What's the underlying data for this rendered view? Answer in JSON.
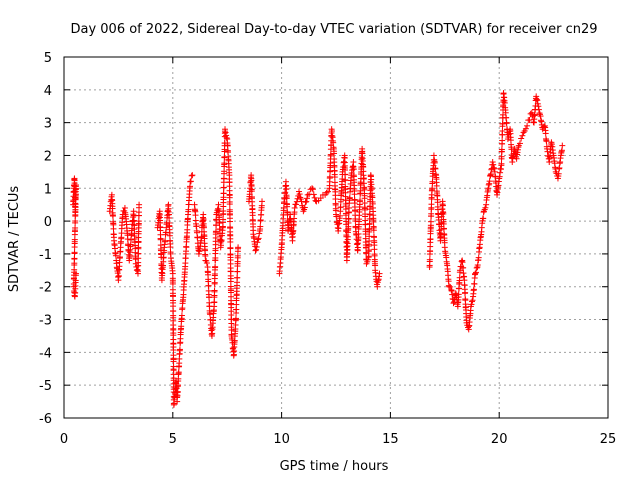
{
  "chart_data": {
    "type": "scatter",
    "title": "Day 006 of 2022, Sidereal Day-to-day VTEC variation (SDTVAR) for receiver cn29",
    "xlabel": "GPS time / hours",
    "ylabel": "SDTVAR / TECUs",
    "xlim": [
      0,
      25
    ],
    "ylim": [
      -6,
      5
    ],
    "xticks": [
      0,
      5,
      10,
      15,
      20,
      25
    ],
    "yticks": [
      -6,
      -5,
      -4,
      -3,
      -2,
      -1,
      0,
      1,
      2,
      3,
      4,
      5
    ],
    "grid": true,
    "marker": "plus",
    "color": "#ff0000",
    "series": [
      {
        "name": "SDTVAR",
        "segments": [
          [
            [
              0.42,
              0.5
            ],
            [
              0.45,
              0.9
            ],
            [
              0.48,
              1.3
            ],
            [
              0.52,
              0.3
            ],
            [
              0.55,
              1.1
            ],
            [
              0.45,
              -2.0
            ],
            [
              0.5,
              -2.3
            ],
            [
              0.55,
              -1.6
            ]
          ],
          [
            [
              2.1,
              0.3
            ],
            [
              2.2,
              0.8
            ],
            [
              2.3,
              -0.6
            ],
            [
              2.4,
              -1.2
            ],
            [
              2.5,
              -1.8
            ],
            [
              2.6,
              -0.8
            ],
            [
              2.7,
              0.2
            ],
            [
              2.8,
              0.4
            ],
            [
              2.9,
              -0.3
            ],
            [
              3.0,
              -1.2
            ],
            [
              3.1,
              -0.4
            ],
            [
              3.2,
              0.3
            ],
            [
              3.3,
              -1.3
            ],
            [
              3.4,
              -1.6
            ],
            [
              3.45,
              0.5
            ]
          ],
          [
            [
              4.3,
              -0.2
            ],
            [
              4.4,
              0.3
            ],
            [
              4.5,
              -1.8
            ],
            [
              4.6,
              -0.9
            ],
            [
              4.7,
              -0.2
            ],
            [
              4.8,
              0.5
            ],
            [
              4.9,
              -1.0
            ],
            [
              5.0,
              -1.6
            ],
            [
              5.05,
              -5.6
            ],
            [
              5.15,
              -4.9
            ],
            [
              5.2,
              -5.5
            ],
            [
              5.3,
              -4.2
            ],
            [
              5.4,
              -3.0
            ],
            [
              5.5,
              -2.1
            ],
            [
              5.6,
              -1.0
            ],
            [
              5.7,
              0.2
            ],
            [
              5.8,
              1.2
            ],
            [
              5.9,
              1.4
            ]
          ],
          [
            [
              6.0,
              0.5
            ],
            [
              6.1,
              -0.3
            ],
            [
              6.2,
              -1.0
            ],
            [
              6.3,
              -0.6
            ],
            [
              6.4,
              0.2
            ],
            [
              6.5,
              -1.2
            ],
            [
              6.6,
              -1.4
            ],
            [
              6.7,
              -2.8
            ],
            [
              6.8,
              -3.5
            ],
            [
              6.9,
              -2.6
            ],
            [
              7.0,
              0.2
            ],
            [
              7.1,
              0.5
            ],
            [
              7.2,
              -0.8
            ],
            [
              7.3,
              -0.2
            ],
            [
              7.4,
              2.8
            ],
            [
              7.5,
              2.5
            ],
            [
              7.6,
              1.4
            ],
            [
              7.7,
              -3.5
            ],
            [
              7.8,
              -4.1
            ],
            [
              7.9,
              -3.0
            ],
            [
              8.0,
              -0.8
            ]
          ],
          [
            [
              8.5,
              0.6
            ],
            [
              8.6,
              1.4
            ],
            [
              8.7,
              -0.4
            ],
            [
              8.8,
              -0.9
            ],
            [
              9.0,
              -0.3
            ],
            [
              9.1,
              0.6
            ]
          ],
          [
            [
              9.9,
              -1.6
            ],
            [
              10.0,
              -0.8
            ],
            [
              10.1,
              0.4
            ],
            [
              10.2,
              1.2
            ],
            [
              10.3,
              -0.3
            ],
            [
              10.4,
              0.2
            ],
            [
              10.5,
              -0.6
            ],
            [
              10.6,
              0.4
            ],
            [
              10.8,
              0.9
            ],
            [
              11.0,
              0.3
            ],
            [
              11.2,
              0.8
            ],
            [
              11.4,
              1.0
            ],
            [
              11.6,
              0.6
            ],
            [
              11.8,
              0.7
            ],
            [
              12.0,
              0.8
            ],
            [
              12.2,
              1.0
            ],
            [
              12.3,
              2.8
            ],
            [
              12.4,
              2.2
            ],
            [
              12.5,
              0.2
            ],
            [
              12.6,
              -0.3
            ],
            [
              12.7,
              0.3
            ],
            [
              12.8,
              1.5
            ],
            [
              12.9,
              2.0
            ],
            [
              13.0,
              -1.2
            ],
            [
              13.1,
              0.4
            ],
            [
              13.2,
              1.4
            ],
            [
              13.3,
              1.8
            ],
            [
              13.4,
              -0.2
            ],
            [
              13.5,
              -0.9
            ],
            [
              13.6,
              0.6
            ],
            [
              13.7,
              2.2
            ],
            [
              13.8,
              1.0
            ],
            [
              13.9,
              -1.3
            ],
            [
              14.0,
              -1.1
            ],
            [
              14.1,
              1.4
            ],
            [
              14.2,
              0.4
            ],
            [
              14.3,
              -1.5
            ],
            [
              14.4,
              -2.0
            ],
            [
              14.5,
              -1.6
            ]
          ],
          [
            [
              16.8,
              -1.4
            ],
            [
              16.9,
              0.8
            ],
            [
              17.0,
              2.0
            ],
            [
              17.1,
              1.4
            ],
            [
              17.2,
              0.2
            ],
            [
              17.3,
              -0.6
            ],
            [
              17.4,
              0.6
            ],
            [
              17.5,
              -0.8
            ],
            [
              17.6,
              -1.3
            ],
            [
              17.7,
              -2.0
            ],
            [
              17.8,
              -2.1
            ],
            [
              17.9,
              -2.5
            ],
            [
              18.0,
              -2.2
            ],
            [
              18.1,
              -2.6
            ],
            [
              18.2,
              -1.5
            ],
            [
              18.3,
              -1.2
            ],
            [
              18.4,
              -1.8
            ],
            [
              18.5,
              -3.1
            ],
            [
              18.6,
              -3.3
            ],
            [
              18.7,
              -2.6
            ],
            [
              18.8,
              -2.3
            ],
            [
              18.9,
              -1.6
            ],
            [
              19.0,
              -1.4
            ],
            [
              19.1,
              -0.8
            ],
            [
              19.2,
              -0.2
            ],
            [
              19.3,
              0.3
            ],
            [
              19.4,
              0.5
            ],
            [
              19.5,
              1.0
            ],
            [
              19.6,
              1.4
            ],
            [
              19.7,
              1.8
            ],
            [
              19.8,
              1.5
            ],
            [
              19.9,
              0.8
            ],
            [
              20.0,
              1.3
            ],
            [
              20.1,
              1.7
            ],
            [
              20.2,
              3.9
            ],
            [
              20.3,
              3.3
            ],
            [
              20.4,
              2.5
            ],
            [
              20.5,
              2.8
            ],
            [
              20.6,
              1.8
            ],
            [
              20.7,
              2.2
            ],
            [
              20.8,
              1.9
            ],
            [
              20.9,
              2.3
            ],
            [
              21.5,
              3.3
            ],
            [
              21.6,
              3.0
            ],
            [
              21.7,
              3.8
            ],
            [
              21.8,
              3.5
            ],
            [
              21.9,
              3.2
            ],
            [
              22.0,
              2.8
            ],
            [
              22.1,
              2.9
            ],
            [
              22.2,
              2.2
            ],
            [
              22.3,
              1.8
            ],
            [
              22.4,
              2.4
            ],
            [
              22.5,
              2.0
            ],
            [
              22.6,
              1.5
            ],
            [
              22.7,
              1.3
            ],
            [
              22.8,
              1.8
            ],
            [
              22.9,
              2.3
            ]
          ]
        ]
      }
    ]
  }
}
